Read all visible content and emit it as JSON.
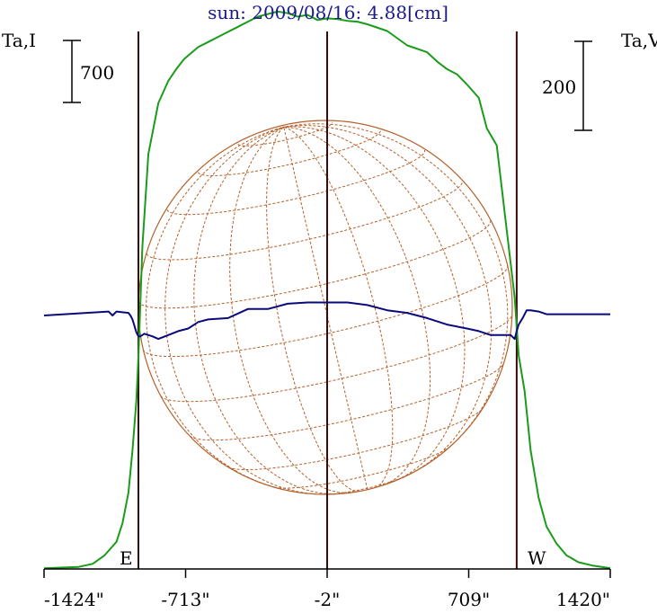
{
  "chart_data": {
    "type": "line",
    "title": "sun: 2009/08/16: 4.88[cm]",
    "left_axis_label": "Ta,I",
    "right_axis_label": "Ta,V",
    "x_tick_labels": [
      "-1424\"",
      "-713\"",
      "-2\"",
      "709\"",
      "1420\""
    ],
    "x_ticks": [
      -1424,
      -713,
      -2,
      709,
      1420
    ],
    "x_range": [
      -1424,
      1420
    ],
    "scale_bars": [
      {
        "side": "left",
        "label": "700"
      },
      {
        "side": "right",
        "label": "200"
      }
    ],
    "limb_markers": [
      {
        "label": "E",
        "x": -950
      },
      {
        "label": "W",
        "x": 950
      }
    ],
    "center_line_x": -2,
    "colors": {
      "title": "#1a1a8c",
      "intensity": "#1a9c1a",
      "polarization": "#0a0a7a",
      "grid": "#b5602a",
      "vertical_lines": "#3a0a0a",
      "axis": "#000000"
    },
    "series": [
      {
        "name": "Ta,I",
        "color": "#1a9c1a",
        "x": [
          -1424,
          -1340,
          -1250,
          -1180,
          -1120,
          -1060,
          -1030,
          -1000,
          -980,
          -960,
          -950,
          -930,
          -900,
          -850,
          -800,
          -760,
          -720,
          -650,
          -600,
          -550,
          -450,
          -400,
          -350,
          -250,
          -200,
          -150,
          -100,
          -50,
          -2,
          50,
          100,
          150,
          200,
          300,
          400,
          500,
          550,
          600,
          650,
          700,
          760,
          800,
          850,
          900,
          940,
          960,
          990,
          1020,
          1060,
          1100,
          1150,
          1200,
          1260,
          1330,
          1420
        ],
        "y": [
          4,
          8,
          12,
          30,
          80,
          160,
          270,
          450,
          700,
          1000,
          1250,
          1900,
          2450,
          2750,
          2880,
          2950,
          3010,
          3080,
          3110,
          3140,
          3200,
          3230,
          3260,
          3290,
          3280,
          3260,
          3270,
          3240,
          3250,
          3245,
          3235,
          3230,
          3215,
          3175,
          3090,
          3050,
          2995,
          2950,
          2920,
          2860,
          2780,
          2600,
          2500,
          2000,
          1600,
          1260,
          1050,
          700,
          420,
          250,
          150,
          80,
          40,
          20,
          5
        ]
      },
      {
        "name": "Ta,V",
        "color": "#0a0a7a",
        "x": [
          -1424,
          -1100,
          -1080,
          -1060,
          -1000,
          -990,
          -980,
          -970,
          -960,
          -950,
          -940,
          -920,
          -880,
          -850,
          -800,
          -750,
          -700,
          -650,
          -600,
          -500,
          -400,
          -300,
          -200,
          -100,
          -2,
          100,
          200,
          300,
          400,
          500,
          600,
          700,
          760,
          820,
          880,
          920,
          940,
          950,
          960,
          980,
          1000,
          1020,
          1060,
          1100,
          1420
        ],
        "y": [
          0,
          3,
          0,
          3,
          2,
          0,
          -3,
          -8,
          -13,
          -16,
          -16,
          -14,
          -16,
          -18,
          -15,
          -12,
          -10,
          -5,
          -3,
          -2,
          5,
          5,
          9,
          10,
          10,
          10,
          8,
          4,
          2,
          -2,
          -7,
          -10,
          -12,
          -15,
          -15,
          -15,
          -18,
          -12,
          -7,
          -2,
          4,
          4,
          3,
          1,
          1
        ]
      }
    ]
  }
}
